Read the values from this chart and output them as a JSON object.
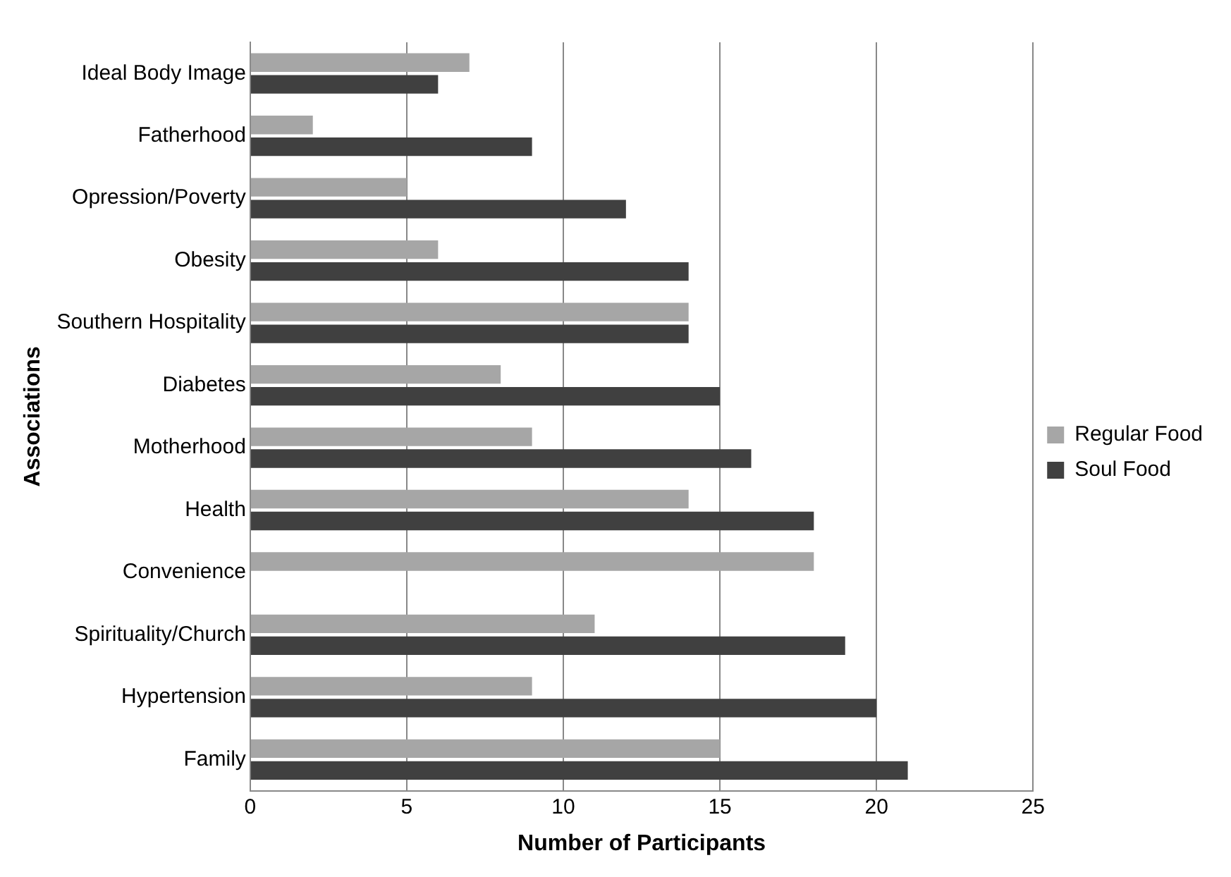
{
  "chart_data": {
    "type": "bar",
    "orientation": "horizontal",
    "xlabel": "Number of Participants",
    "ylabel": "Associations",
    "categories": [
      "Ideal Body Image",
      "Fatherhood",
      "Opression/Poverty",
      "Obesity",
      "Southern Hospitality",
      "Diabetes",
      "Motherhood",
      "Health",
      "Convenience",
      "Spirituality/Church",
      "Hypertension",
      "Family"
    ],
    "series": [
      {
        "name": "Regular Food",
        "color": "#a6a6a6",
        "values": [
          7,
          2,
          5,
          6,
          14,
          8,
          9,
          14,
          18,
          11,
          9,
          15
        ]
      },
      {
        "name": "Soul Food",
        "color": "#404040",
        "values": [
          6,
          9,
          12,
          14,
          14,
          15,
          16,
          18,
          null,
          19,
          20,
          21
        ]
      }
    ],
    "xlim": [
      0,
      25
    ],
    "xticks": [
      0,
      5,
      10,
      15,
      20,
      25
    ],
    "grid": "x",
    "legend": "right"
  }
}
